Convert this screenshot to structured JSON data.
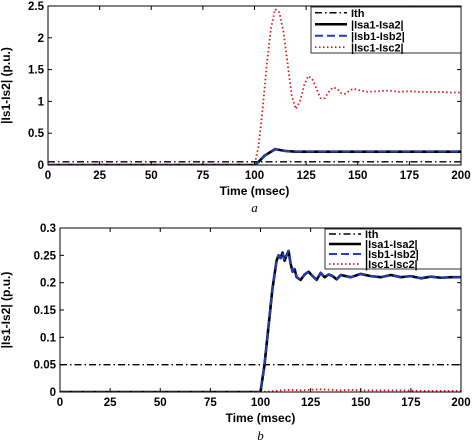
{
  "chart_data": [
    {
      "type": "line",
      "panel_label": "a",
      "xlabel": "Time (msec)",
      "ylabel": "|Is1-Is2| (p.u.)",
      "xlim": [
        0,
        200
      ],
      "ylim": [
        0,
        2.5
      ],
      "xticks": [
        0,
        25,
        50,
        75,
        100,
        125,
        150,
        175,
        200
      ],
      "yticks": [
        0,
        0.5,
        1,
        1.5,
        2,
        2.5
      ],
      "xtick_labels": [
        "0",
        "25",
        "50",
        "75",
        "100",
        "125",
        "150",
        "175",
        "200"
      ],
      "ytick_labels": [
        "0",
        "0.5",
        "1",
        "1.5",
        "2",
        "2.5"
      ],
      "grid": false,
      "legend_position": "top-right",
      "series": [
        {
          "name": "Ith",
          "style": "dash-dot",
          "color": "#000000",
          "x": [
            0,
            200
          ],
          "y": [
            0.05,
            0.05
          ]
        },
        {
          "name": "|Isa1-Isa2|",
          "style": "solid",
          "color": "#000000",
          "x": [
            0,
            100,
            102,
            105,
            110,
            115,
            120,
            200
          ],
          "y": [
            0,
            0,
            0.05,
            0.15,
            0.25,
            0.22,
            0.21,
            0.21
          ]
        },
        {
          "name": "|Isb1-Isb2|",
          "style": "dashed",
          "color": "#1f3fbf",
          "x": [
            0,
            100,
            102,
            105,
            110,
            115,
            120,
            200
          ],
          "y": [
            0,
            0,
            0.05,
            0.15,
            0.25,
            0.22,
            0.21,
            0.21
          ]
        },
        {
          "name": "|Isc1-Isc2|",
          "style": "dotted",
          "color": "#d7191c",
          "x": [
            0,
            100,
            102,
            104,
            106,
            108,
            110,
            112,
            114,
            116,
            118,
            120,
            122,
            124,
            126,
            128,
            130,
            132,
            134,
            136,
            138,
            140,
            142,
            144,
            146,
            148,
            150,
            155,
            160,
            165,
            170,
            175,
            180,
            185,
            190,
            195,
            200
          ],
          "y": [
            0,
            0,
            0.3,
            0.9,
            1.6,
            2.15,
            2.45,
            2.4,
            2.1,
            1.6,
            1.1,
            0.88,
            1.0,
            1.25,
            1.4,
            1.35,
            1.2,
            1.05,
            1.05,
            1.15,
            1.22,
            1.2,
            1.13,
            1.12,
            1.17,
            1.2,
            1.18,
            1.15,
            1.16,
            1.17,
            1.15,
            1.16,
            1.15,
            1.15,
            1.15,
            1.14,
            1.14
          ]
        }
      ]
    },
    {
      "type": "line",
      "panel_label": "b",
      "xlabel": "Time (msec)",
      "ylabel": "|Is1-Is2| (p.u.)",
      "xlim": [
        0,
        200
      ],
      "ylim": [
        0,
        0.3
      ],
      "xticks": [
        0,
        25,
        50,
        75,
        100,
        125,
        150,
        175,
        200
      ],
      "yticks": [
        0,
        0.05,
        0.1,
        0.15,
        0.2,
        0.25,
        0.3
      ],
      "xtick_labels": [
        "0",
        "25",
        "50",
        "75",
        "100",
        "125",
        "150",
        "175",
        "200"
      ],
      "ytick_labels": [
        "0",
        "0.05",
        "0.1",
        "0.15",
        "0.2",
        "0.25",
        "0.3"
      ],
      "grid": false,
      "legend_position": "top-right",
      "series": [
        {
          "name": "Ith",
          "style": "dash-dot",
          "color": "#000000",
          "x": [
            0,
            200
          ],
          "y": [
            0.05,
            0.05
          ]
        },
        {
          "name": "|Isa1-Isa2|",
          "style": "solid",
          "color": "#000000",
          "x": [
            0,
            100,
            102,
            104,
            106,
            108,
            109,
            110,
            111,
            112,
            113,
            114,
            115,
            116,
            117,
            118,
            120,
            122,
            124,
            126,
            128,
            130,
            132,
            134,
            136,
            138,
            140,
            145,
            150,
            155,
            160,
            165,
            170,
            175,
            180,
            185,
            190,
            195,
            200
          ],
          "y": [
            0,
            0,
            0.05,
            0.12,
            0.19,
            0.24,
            0.25,
            0.245,
            0.255,
            0.24,
            0.25,
            0.258,
            0.235,
            0.22,
            0.225,
            0.21,
            0.205,
            0.215,
            0.22,
            0.212,
            0.205,
            0.218,
            0.21,
            0.215,
            0.212,
            0.206,
            0.214,
            0.21,
            0.216,
            0.212,
            0.21,
            0.214,
            0.21,
            0.212,
            0.208,
            0.211,
            0.209,
            0.21,
            0.21
          ]
        },
        {
          "name": "|Isb1-Isb2|",
          "style": "dashed",
          "color": "#1f3fbf",
          "x": [
            0,
            100,
            102,
            104,
            106,
            108,
            109,
            110,
            111,
            112,
            113,
            114,
            115,
            116,
            117,
            118,
            120,
            122,
            124,
            126,
            128,
            130,
            132,
            134,
            136,
            138,
            140,
            145,
            150,
            155,
            160,
            165,
            170,
            175,
            180,
            185,
            190,
            195,
            200
          ],
          "y": [
            0,
            0,
            0.05,
            0.12,
            0.19,
            0.24,
            0.25,
            0.245,
            0.255,
            0.24,
            0.25,
            0.258,
            0.235,
            0.22,
            0.225,
            0.21,
            0.205,
            0.215,
            0.22,
            0.212,
            0.205,
            0.218,
            0.21,
            0.215,
            0.212,
            0.206,
            0.214,
            0.21,
            0.216,
            0.212,
            0.21,
            0.214,
            0.21,
            0.212,
            0.208,
            0.211,
            0.209,
            0.21,
            0.21
          ]
        },
        {
          "name": "|Isc1-Isc2|",
          "style": "dotted",
          "color": "#d7191c",
          "x": [
            0,
            100,
            105,
            110,
            115,
            120,
            125,
            130,
            135,
            140,
            145,
            150,
            160,
            170,
            180,
            190,
            200
          ],
          "y": [
            0,
            0,
            0.001,
            0.003,
            0.004,
            0.003,
            0.004,
            0.005,
            0.004,
            0.003,
            0.004,
            0.003,
            0.003,
            0.003,
            0.002,
            0.002,
            0.002
          ]
        }
      ]
    }
  ]
}
